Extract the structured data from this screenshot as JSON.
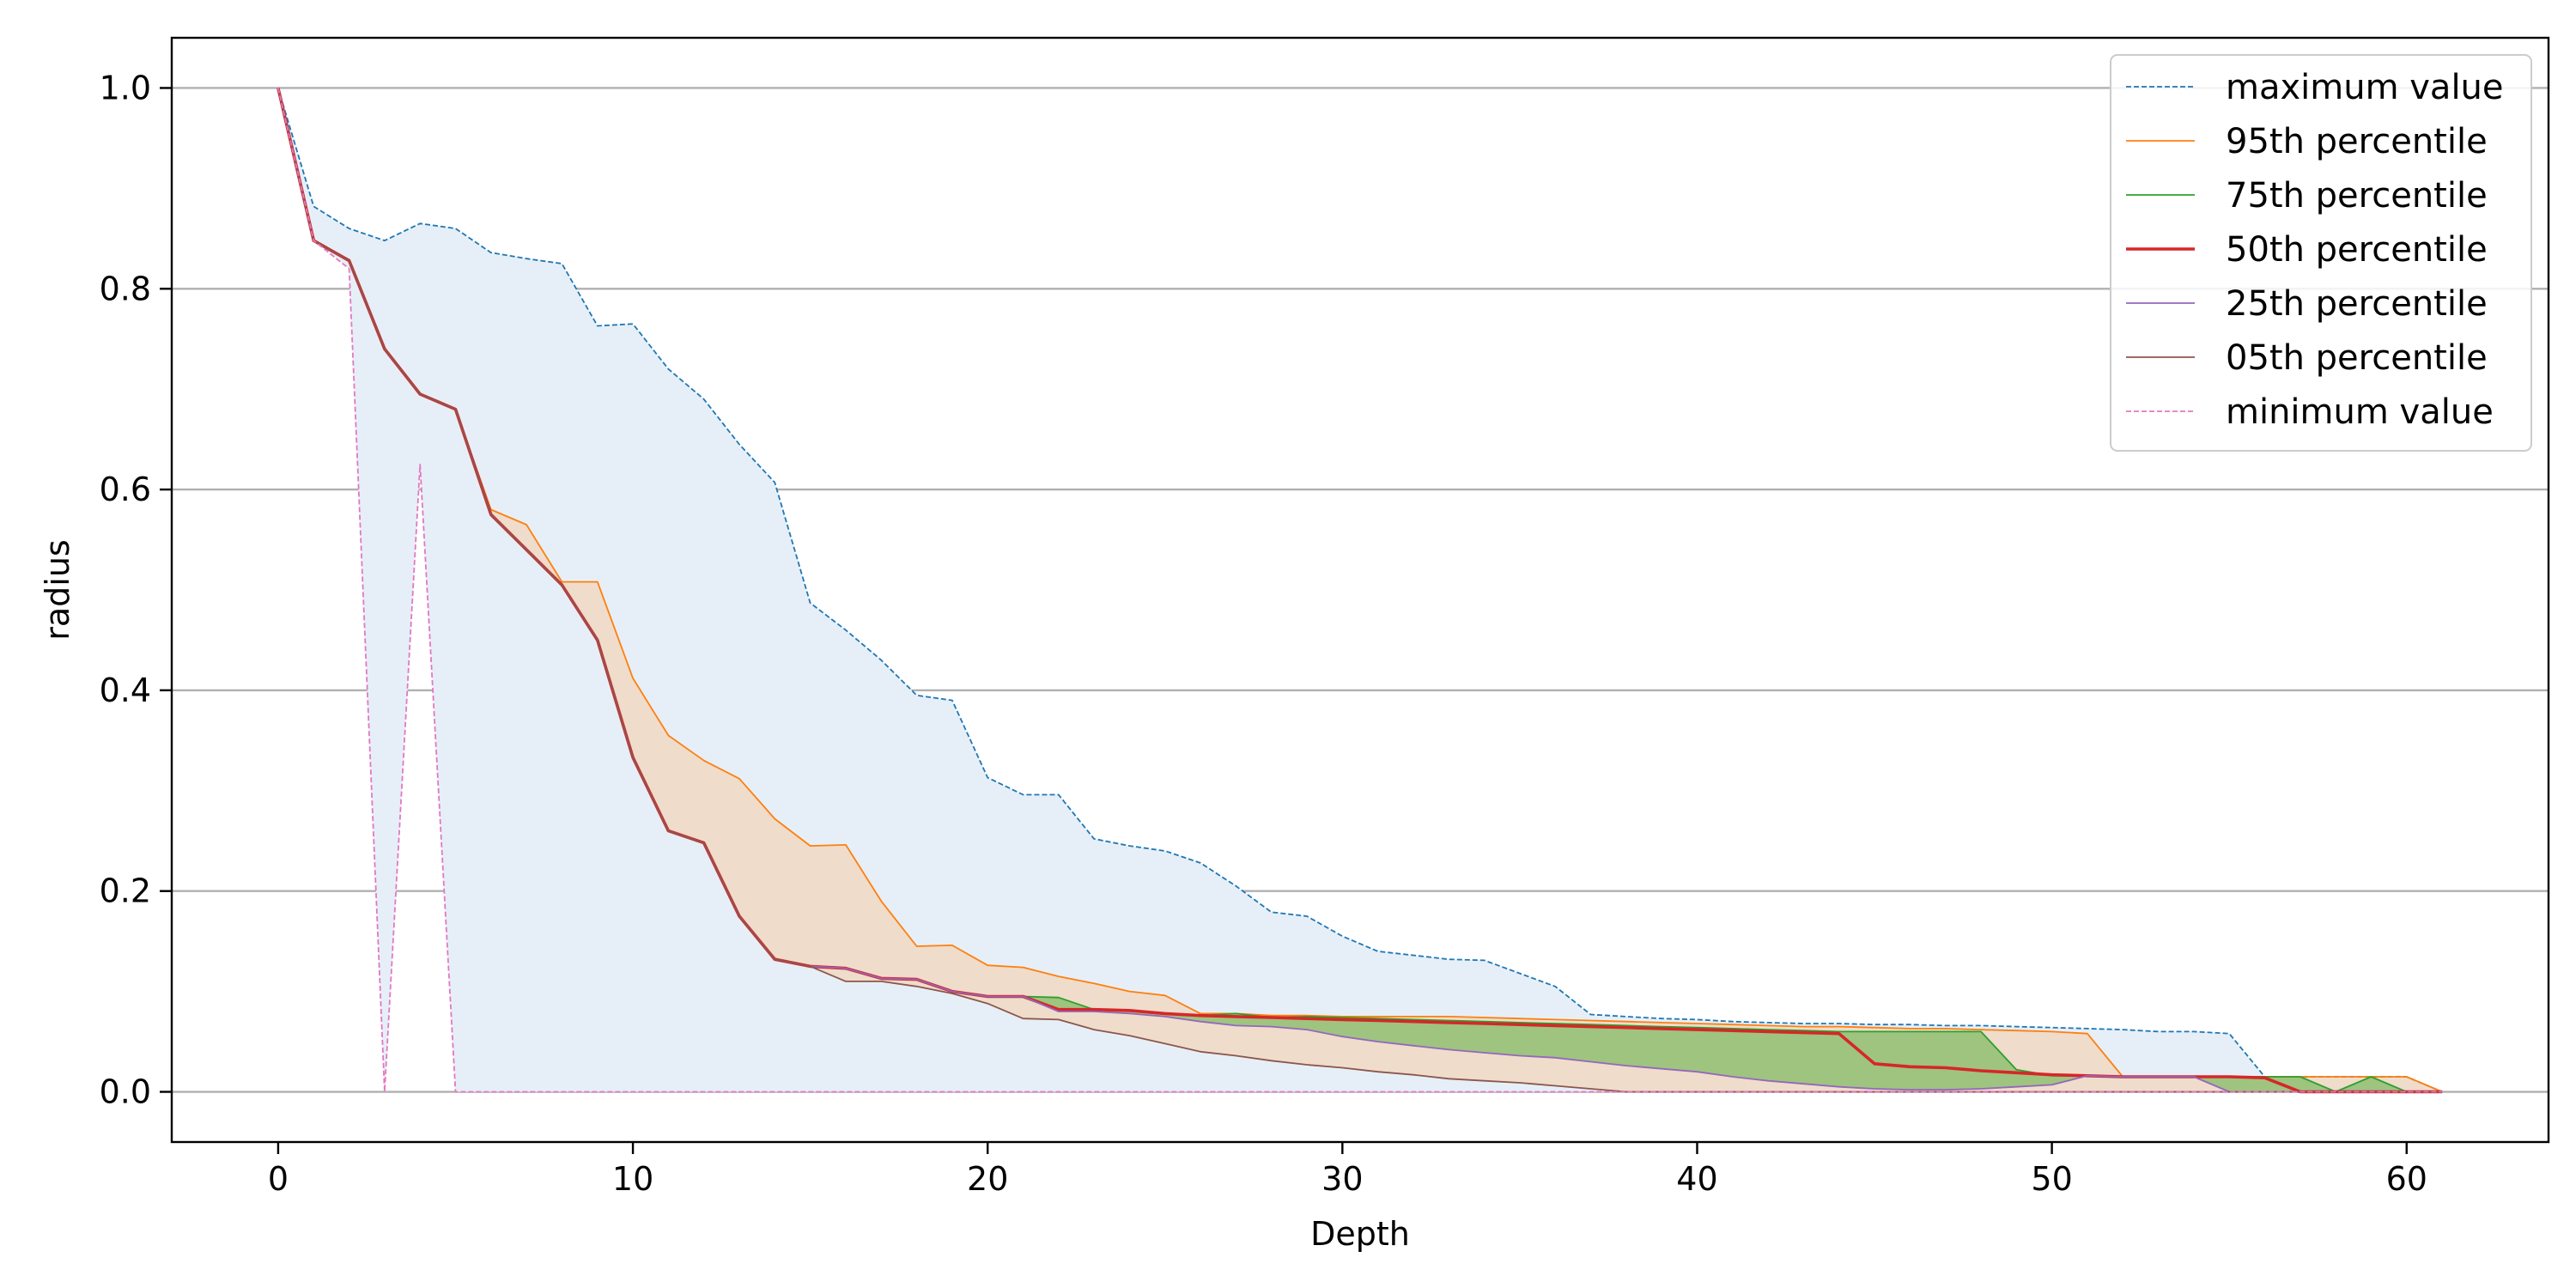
{
  "chart_data": {
    "type": "line",
    "title": "",
    "xlabel": "Depth",
    "ylabel": "radius",
    "xlim": [
      -3,
      64
    ],
    "ylim": [
      -0.05,
      1.05
    ],
    "xticks": [
      0,
      10,
      20,
      30,
      40,
      50,
      60
    ],
    "yticks": [
      0.0,
      0.2,
      0.4,
      0.6,
      0.8,
      1.0
    ],
    "ytick_labels": [
      "0.0",
      "0.2",
      "0.4",
      "0.6",
      "0.8",
      "1.0"
    ],
    "grid": "horizontal",
    "legend_position": "top-right",
    "x": [
      0,
      1,
      2,
      3,
      4,
      5,
      6,
      7,
      8,
      9,
      10,
      11,
      12,
      13,
      14,
      15,
      16,
      17,
      18,
      19,
      20,
      21,
      22,
      23,
      24,
      25,
      26,
      27,
      28,
      29,
      30,
      31,
      32,
      33,
      34,
      35,
      36,
      37,
      38,
      39,
      40,
      41,
      42,
      43,
      44,
      45,
      46,
      47,
      48,
      49,
      50,
      51,
      52,
      53,
      54,
      55,
      56,
      57,
      58,
      59,
      60,
      61
    ],
    "series": [
      {
        "name": "maximum value",
        "color": "#1f77b4",
        "style": "dashed",
        "fill": "#e6eff7",
        "values": [
          1.0,
          0.882,
          0.86,
          0.848,
          0.865,
          0.86,
          0.836,
          0.83,
          0.825,
          0.763,
          0.765,
          0.72,
          0.69,
          0.645,
          0.607,
          0.487,
          0.46,
          0.43,
          0.395,
          0.39,
          0.313,
          0.296,
          0.296,
          0.252,
          0.245,
          0.24,
          0.228,
          0.205,
          0.179,
          0.175,
          0.155,
          0.14,
          0.136,
          0.132,
          0.131,
          0.118,
          0.105,
          0.077,
          0.075,
          0.073,
          0.072,
          0.07,
          0.069,
          0.068,
          0.068,
          0.067,
          0.067,
          0.066,
          0.066,
          0.065,
          0.064,
          0.063,
          0.062,
          0.06,
          0.06,
          0.058,
          0.015,
          0.015,
          0.015,
          0.015,
          0.015,
          0.0
        ]
      },
      {
        "name": "95th percentile",
        "color": "#ff7f0e",
        "style": "solid",
        "fill": "#efdccb",
        "values": [
          1.0,
          0.848,
          0.828,
          0.74,
          0.695,
          0.68,
          0.58,
          0.565,
          0.508,
          0.508,
          0.412,
          0.355,
          0.33,
          0.312,
          0.272,
          0.245,
          0.246,
          0.19,
          0.145,
          0.146,
          0.126,
          0.124,
          0.115,
          0.108,
          0.1,
          0.096,
          0.078,
          0.078,
          0.076,
          0.076,
          0.075,
          0.075,
          0.075,
          0.075,
          0.074,
          0.073,
          0.072,
          0.071,
          0.07,
          0.069,
          0.068,
          0.067,
          0.066,
          0.065,
          0.065,
          0.064,
          0.063,
          0.063,
          0.062,
          0.061,
          0.06,
          0.058,
          0.015,
          0.015,
          0.015,
          0.015,
          0.015,
          0.015,
          0.015,
          0.015,
          0.015,
          0.0
        ]
      },
      {
        "name": "75th percentile",
        "color": "#2ca02c",
        "style": "solid",
        "fill": "#9ec47f",
        "values": [
          1.0,
          0.848,
          0.828,
          0.74,
          0.695,
          0.68,
          0.575,
          0.54,
          0.505,
          0.45,
          0.333,
          0.26,
          0.248,
          0.175,
          0.132,
          0.125,
          0.123,
          0.113,
          0.112,
          0.1,
          0.095,
          0.095,
          0.094,
          0.082,
          0.081,
          0.078,
          0.076,
          0.078,
          0.074,
          0.075,
          0.074,
          0.073,
          0.072,
          0.071,
          0.07,
          0.069,
          0.068,
          0.067,
          0.066,
          0.065,
          0.064,
          0.063,
          0.062,
          0.061,
          0.06,
          0.06,
          0.06,
          0.06,
          0.06,
          0.022,
          0.016,
          0.016,
          0.015,
          0.015,
          0.015,
          0.015,
          0.015,
          0.015,
          0.0,
          0.015,
          0.0,
          0.0
        ]
      },
      {
        "name": "50th percentile",
        "color": "#d62728",
        "style": "solid",
        "fill": null,
        "values": [
          1.0,
          0.848,
          0.828,
          0.74,
          0.695,
          0.68,
          0.575,
          0.54,
          0.505,
          0.45,
          0.333,
          0.26,
          0.248,
          0.175,
          0.132,
          0.125,
          0.123,
          0.113,
          0.112,
          0.1,
          0.095,
          0.095,
          0.082,
          0.082,
          0.081,
          0.078,
          0.076,
          0.075,
          0.074,
          0.073,
          0.072,
          0.071,
          0.07,
          0.069,
          0.068,
          0.067,
          0.066,
          0.065,
          0.064,
          0.063,
          0.062,
          0.061,
          0.06,
          0.059,
          0.058,
          0.028,
          0.025,
          0.024,
          0.021,
          0.019,
          0.017,
          0.016,
          0.015,
          0.015,
          0.015,
          0.015,
          0.014,
          0.0,
          0.0,
          0.0,
          0.0,
          0.0
        ]
      },
      {
        "name": "25th percentile",
        "color": "#9467bd",
        "style": "solid",
        "fill": null,
        "values": [
          1.0,
          0.848,
          0.828,
          0.74,
          0.695,
          0.68,
          0.575,
          0.54,
          0.505,
          0.45,
          0.333,
          0.26,
          0.248,
          0.175,
          0.132,
          0.125,
          0.123,
          0.113,
          0.112,
          0.1,
          0.095,
          0.095,
          0.08,
          0.08,
          0.078,
          0.075,
          0.07,
          0.066,
          0.065,
          0.062,
          0.055,
          0.05,
          0.046,
          0.042,
          0.039,
          0.036,
          0.034,
          0.03,
          0.026,
          0.023,
          0.02,
          0.015,
          0.011,
          0.008,
          0.005,
          0.003,
          0.002,
          0.002,
          0.003,
          0.005,
          0.007,
          0.016,
          0.015,
          0.015,
          0.015,
          0.0,
          0.0,
          0.0,
          0.0,
          0.0,
          0.0,
          0.0
        ]
      },
      {
        "name": "05th percentile",
        "color": "#8c564b",
        "style": "solid",
        "fill": null,
        "values": [
          1.0,
          0.848,
          0.828,
          0.74,
          0.695,
          0.68,
          0.575,
          0.54,
          0.505,
          0.45,
          0.333,
          0.26,
          0.248,
          0.175,
          0.132,
          0.125,
          0.11,
          0.11,
          0.105,
          0.098,
          0.088,
          0.073,
          0.072,
          0.062,
          0.056,
          0.048,
          0.04,
          0.036,
          0.031,
          0.027,
          0.024,
          0.02,
          0.017,
          0.013,
          0.011,
          0.009,
          0.006,
          0.003,
          0.0,
          0.0,
          0.0,
          0.0,
          0.0,
          0.0,
          0.0,
          0.0,
          0.0,
          0.0,
          0.0,
          0.0,
          0.0,
          0.0,
          0.0,
          0.0,
          0.0,
          0.0,
          0.0,
          0.0,
          0.0,
          0.0,
          0.0,
          0.0
        ]
      },
      {
        "name": "minimum value",
        "color": "#e377c2",
        "style": "dashed",
        "fill": null,
        "values": [
          1.0,
          0.848,
          0.82,
          0.0,
          0.625,
          0.0,
          0.0,
          0.0,
          0.0,
          0.0,
          0.0,
          0.0,
          0.0,
          0.0,
          0.0,
          0.0,
          0.0,
          0.0,
          0.0,
          0.0,
          0.0,
          0.0,
          0.0,
          0.0,
          0.0,
          0.0,
          0.0,
          0.0,
          0.0,
          0.0,
          0.0,
          0.0,
          0.0,
          0.0,
          0.0,
          0.0,
          0.0,
          0.0,
          0.0,
          0.0,
          0.0,
          0.0,
          0.0,
          0.0,
          0.0,
          0.0,
          0.0,
          0.0,
          0.0,
          0.0,
          0.0,
          0.0,
          0.0,
          0.0,
          0.0,
          0.0,
          0.0,
          0.0,
          0.0,
          0.0,
          0.0,
          0.0
        ]
      }
    ],
    "fill_bands": [
      {
        "upper": "maximum value",
        "lower": "minimum value",
        "color": "#e6eff7"
      },
      {
        "upper": "95th percentile",
        "lower": "05th percentile",
        "color": "#efdccb"
      },
      {
        "upper": "75th percentile",
        "lower": "25th percentile",
        "color": "#9ec47f"
      }
    ]
  }
}
